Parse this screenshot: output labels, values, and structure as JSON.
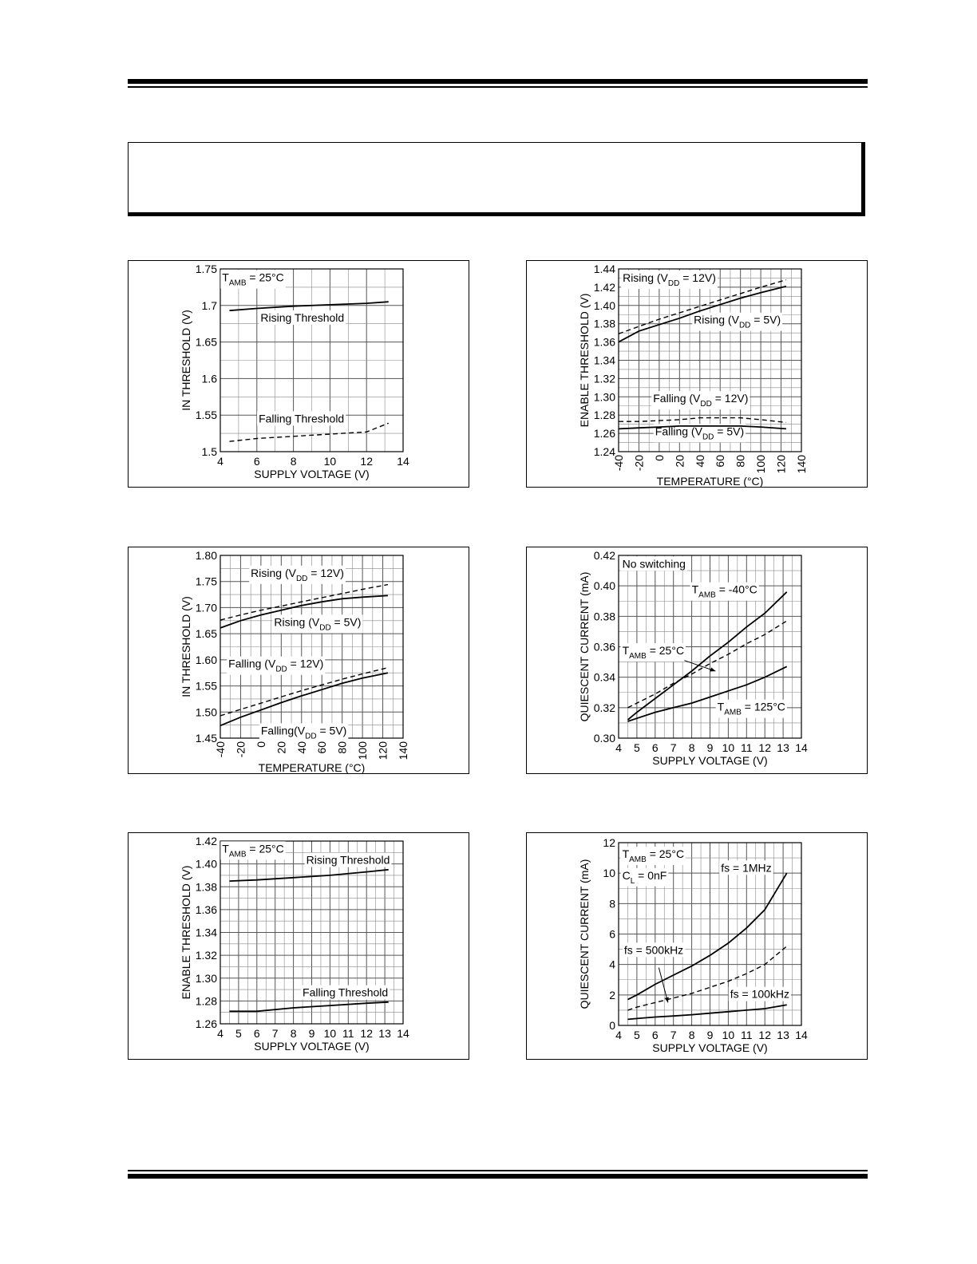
{
  "chart_data": [
    {
      "type": "line",
      "xlabel": "SUPPLY VOLTAGE (V)",
      "ylabel": "IN THRESHOLD (V)",
      "xlim": [
        4,
        14
      ],
      "ylim": [
        1.5,
        1.75
      ],
      "xticks": [
        4,
        6,
        8,
        10,
        12,
        14
      ],
      "yticks": [
        1.5,
        1.55,
        1.6,
        1.65,
        1.7,
        1.75
      ],
      "ytick_labels": [
        "1.5",
        "1.55",
        "1.6",
        "1.65",
        "1.7",
        "1.75"
      ],
      "grid": true,
      "series": [
        {
          "name": "Rising Threshold",
          "style": "solid",
          "x": [
            4.5,
            6,
            8,
            10,
            12,
            13.2
          ],
          "y": [
            1.693,
            1.696,
            1.699,
            1.701,
            1.703,
            1.705
          ]
        },
        {
          "name": "Falling Threshold",
          "style": "dashed",
          "x": [
            4.5,
            6,
            8,
            10,
            12,
            13.2
          ],
          "y": [
            1.514,
            1.518,
            1.521,
            1.524,
            1.527,
            1.539
          ]
        }
      ],
      "annotations": [
        {
          "text": "T",
          "sub": "AMB",
          "rest": " = 25°C",
          "ax": 4.1,
          "ay": 1.733
        },
        {
          "text": "Rising Threshold",
          "sub": "",
          "rest": "",
          "ax": 6.2,
          "ay": 1.678
        },
        {
          "text": "Falling Threshold",
          "sub": "",
          "rest": "",
          "ax": 6.1,
          "ay": 1.54
        }
      ]
    },
    {
      "type": "line",
      "xlabel": "TEMPERATURE (°C)",
      "ylabel": "ENABLE THRESHOLD (V)",
      "xlim": [
        -40,
        140
      ],
      "ylim": [
        1.24,
        1.44
      ],
      "xticks": [
        -40,
        -20,
        0,
        20,
        40,
        60,
        80,
        100,
        120,
        140
      ],
      "yticks": [
        1.24,
        1.26,
        1.28,
        1.3,
        1.32,
        1.34,
        1.36,
        1.38,
        1.4,
        1.42,
        1.44
      ],
      "ytick_labels": [
        "1.24",
        "1.26",
        "1.28",
        "1.30",
        "1.32",
        "1.34",
        "1.36",
        "1.38",
        "1.40",
        "1.42",
        "1.44"
      ],
      "rotate_xticks": true,
      "grid": true,
      "series": [
        {
          "name": "Rising (VDD = 12V)",
          "style": "dashed",
          "x": [
            -40,
            -20,
            0,
            20,
            40,
            60,
            80,
            100,
            125
          ],
          "y": [
            1.369,
            1.377,
            1.385,
            1.392,
            1.399,
            1.406,
            1.413,
            1.42,
            1.428
          ]
        },
        {
          "name": "Rising (VDD = 5V)",
          "style": "solid",
          "x": [
            -40,
            -20,
            0,
            20,
            40,
            60,
            80,
            100,
            125
          ],
          "y": [
            1.36,
            1.372,
            1.379,
            1.386,
            1.394,
            1.401,
            1.408,
            1.414,
            1.421
          ]
        },
        {
          "name": "Falling (VDD = 12V)",
          "style": "dashed",
          "x": [
            -40,
            -20,
            0,
            20,
            40,
            60,
            80,
            100,
            125
          ],
          "y": [
            1.273,
            1.273,
            1.274,
            1.275,
            1.277,
            1.277,
            1.277,
            1.275,
            1.272
          ]
        },
        {
          "name": "Falling (VDD = 5V)",
          "style": "solid",
          "x": [
            -40,
            -20,
            0,
            20,
            40,
            60,
            80,
            100,
            125
          ],
          "y": [
            1.265,
            1.266,
            1.267,
            1.268,
            1.268,
            1.268,
            1.268,
            1.267,
            1.265
          ]
        }
      ],
      "annotations": [
        {
          "text": "Rising (V",
          "sub": "DD",
          "rest": " = 12V)",
          "ax": -36,
          "ay": 1.426
        },
        {
          "text": "Rising (V",
          "sub": "DD",
          "rest": " = 5V)",
          "ax": 34,
          "ay": 1.38
        },
        {
          "text": "Falling (V",
          "sub": "DD",
          "rest": " = 12V)",
          "ax": -6,
          "ay": 1.294
        },
        {
          "text": "Falling (V",
          "sub": "DD",
          "rest": " = 5V)",
          "ax": -4,
          "ay": 1.258
        }
      ]
    },
    {
      "type": "line",
      "xlabel": "TEMPERATURE (°C)",
      "ylabel": "IN THRESHOLD (V)",
      "xlim": [
        -40,
        140
      ],
      "ylim": [
        1.45,
        1.8
      ],
      "xticks": [
        -40,
        -20,
        0,
        20,
        40,
        60,
        80,
        100,
        120,
        140
      ],
      "yticks": [
        1.45,
        1.5,
        1.55,
        1.6,
        1.65,
        1.7,
        1.75,
        1.8
      ],
      "ytick_labels": [
        "1.45",
        "1.50",
        "1.55",
        "1.60",
        "1.65",
        "1.70",
        "1.75",
        "1.80"
      ],
      "rotate_xticks": true,
      "grid": true,
      "series": [
        {
          "name": "Rising (VDD = 12V)",
          "style": "dashed",
          "x": [
            -40,
            -20,
            0,
            20,
            40,
            60,
            80,
            100,
            125
          ],
          "y": [
            1.676,
            1.686,
            1.695,
            1.703,
            1.711,
            1.719,
            1.727,
            1.735,
            1.744
          ]
        },
        {
          "name": "Rising (VDD = 5V)",
          "style": "solid",
          "x": [
            -40,
            -20,
            0,
            20,
            40,
            60,
            80,
            100,
            125
          ],
          "y": [
            1.661,
            1.675,
            1.686,
            1.695,
            1.704,
            1.711,
            1.717,
            1.72,
            1.723
          ]
        },
        {
          "name": "Falling (VDD = 12V)",
          "style": "dashed",
          "x": [
            -40,
            -20,
            0,
            20,
            40,
            60,
            80,
            100,
            125
          ],
          "y": [
            1.493,
            1.505,
            1.517,
            1.529,
            1.541,
            1.552,
            1.563,
            1.573,
            1.585
          ]
        },
        {
          "name": "Falling(VDD = 5V)",
          "style": "solid",
          "x": [
            -40,
            -20,
            0,
            20,
            40,
            60,
            80,
            100,
            125
          ],
          "y": [
            1.474,
            1.49,
            1.504,
            1.518,
            1.531,
            1.543,
            1.555,
            1.565,
            1.575
          ]
        }
      ],
      "annotations": [
        {
          "text": "Rising (V",
          "sub": "DD",
          "rest": " = 12V)",
          "ax": -10,
          "ay": 1.759
        },
        {
          "text": "Rising (V",
          "sub": "DD",
          "rest": " = 5V)",
          "ax": 13,
          "ay": 1.665
        },
        {
          "text": "Falling (V",
          "sub": "DD",
          "rest": " = 12V)",
          "ax": -32,
          "ay": 1.585
        },
        {
          "text": "Falling(V",
          "sub": "DD",
          "rest": " = 5V)",
          "ax": 0,
          "ay": 1.457
        }
      ]
    },
    {
      "type": "line",
      "xlabel": "SUPPLY VOLTAGE (V)",
      "ylabel": "QUIESCENT CURRENT (mA)",
      "xlim": [
        4,
        14
      ],
      "ylim": [
        0.3,
        0.42
      ],
      "xticks": [
        4,
        5,
        6,
        7,
        8,
        9,
        10,
        11,
        12,
        13,
        14
      ],
      "yticks": [
        0.3,
        0.32,
        0.34,
        0.36,
        0.38,
        0.4,
        0.42
      ],
      "ytick_labels": [
        "0.30",
        "0.32",
        "0.34",
        "0.36",
        "0.38",
        "0.40",
        "0.42"
      ],
      "grid": true,
      "series": [
        {
          "name": "TAMB = -40°C",
          "style": "solid",
          "x": [
            4.5,
            5,
            6,
            7,
            8,
            9,
            10,
            11,
            12,
            13.2
          ],
          "y": [
            0.312,
            0.317,
            0.326,
            0.335,
            0.344,
            0.354,
            0.363,
            0.373,
            0.382,
            0.396
          ]
        },
        {
          "name": "TAMB = 25°C",
          "style": "dashed",
          "x": [
            4.5,
            5,
            6,
            7,
            8,
            9,
            10,
            11,
            12,
            13.2
          ],
          "y": [
            0.32,
            0.323,
            0.329,
            0.336,
            0.342,
            0.349,
            0.355,
            0.362,
            0.368,
            0.377
          ]
        },
        {
          "name": "TAMB = 125°C",
          "style": "solid",
          "x": [
            4.5,
            5,
            6,
            7,
            8,
            9,
            10,
            11,
            12,
            13.2
          ],
          "y": [
            0.311,
            0.313,
            0.317,
            0.32,
            0.323,
            0.327,
            0.331,
            0.335,
            0.34,
            0.347
          ]
        }
      ],
      "annotations": [
        {
          "text": "No switching",
          "sub": "",
          "rest": "",
          "ax": 4.2,
          "ay": 0.412
        },
        {
          "text": "T",
          "sub": "AMB",
          "rest": " = -40°C",
          "ax": 8,
          "ay": 0.395
        },
        {
          "text": "T",
          "sub": "AMB",
          "rest": " = 25°C",
          "ax": 4.2,
          "ay": 0.355
        },
        {
          "text": "T",
          "sub": "AMB",
          "rest": " = 125°C",
          "ax": 9.4,
          "ay": 0.318
        }
      ],
      "arrows": [
        [
          7.6,
          0.351,
          9.3,
          0.344
        ]
      ]
    },
    {
      "type": "line",
      "xlabel": "SUPPLY VOLTAGE (V)",
      "ylabel": "ENABLE THRESHOLD (V)",
      "xlim": [
        4,
        14
      ],
      "ylim": [
        1.26,
        1.42
      ],
      "xticks": [
        4,
        5,
        6,
        7,
        8,
        9,
        10,
        11,
        12,
        13,
        14
      ],
      "yticks": [
        1.26,
        1.28,
        1.3,
        1.32,
        1.34,
        1.36,
        1.38,
        1.4,
        1.42
      ],
      "ytick_labels": [
        "1.26",
        "1.28",
        "1.30",
        "1.32",
        "1.34",
        "1.36",
        "1.38",
        "1.40",
        "1.42"
      ],
      "grid": true,
      "series": [
        {
          "name": "Rising Threshold",
          "style": "solid",
          "x": [
            4.5,
            6,
            8,
            10,
            12,
            13.2
          ],
          "y": [
            1.385,
            1.386,
            1.388,
            1.39,
            1.393,
            1.395
          ]
        },
        {
          "name": "Falling Threshold",
          "style": "solid",
          "x": [
            4.5,
            6,
            8,
            10,
            12,
            13.2
          ],
          "y": [
            1.271,
            1.271,
            1.274,
            1.276,
            1.278,
            1.279
          ]
        }
      ],
      "annotations": [
        {
          "text": "T",
          "sub": "AMB",
          "rest": " = 25°C",
          "ax": 4.1,
          "ay": 1.41
        },
        {
          "text": "Rising Threshold",
          "sub": "",
          "rest": "",
          "ax": 8.7,
          "ay": 1.4
        },
        {
          "text": "Falling Threshold",
          "sub": "",
          "rest": "",
          "ax": 8.5,
          "ay": 1.284
        }
      ]
    },
    {
      "type": "line",
      "xlabel": "SUPPLY VOLTAGE (V)",
      "ylabel": "QUIESCENT CURRENT (mA)",
      "xlim": [
        4,
        14
      ],
      "ylim": [
        0,
        12
      ],
      "xticks": [
        4,
        5,
        6,
        7,
        8,
        9,
        10,
        11,
        12,
        13,
        14
      ],
      "yticks": [
        0,
        2,
        4,
        6,
        8,
        10,
        12
      ],
      "ytick_labels": [
        "0",
        "2",
        "4",
        "6",
        "8",
        "10",
        "12"
      ],
      "grid": true,
      "series": [
        {
          "name": "fs = 1MHz",
          "style": "solid",
          "x": [
            4.5,
            5,
            6,
            7,
            8,
            9,
            10,
            11,
            12,
            13.2
          ],
          "y": [
            1.7,
            2.0,
            2.7,
            3.3,
            3.9,
            4.6,
            5.4,
            6.4,
            7.6,
            10.0
          ]
        },
        {
          "name": "fs = 500kHz",
          "style": "dashed",
          "x": [
            4.5,
            5,
            6,
            7,
            8,
            9,
            10,
            11,
            12,
            13.2
          ],
          "y": [
            1.0,
            1.2,
            1.5,
            1.8,
            2.1,
            2.5,
            2.9,
            3.4,
            4.0,
            5.2
          ]
        },
        {
          "name": "fs = 100kHz",
          "style": "solid",
          "x": [
            4.5,
            5,
            6,
            7,
            8,
            9,
            10,
            11,
            12,
            13.2
          ],
          "y": [
            0.4,
            0.45,
            0.55,
            0.62,
            0.7,
            0.8,
            0.9,
            1.0,
            1.1,
            1.35
          ]
        }
      ],
      "annotations": [
        {
          "text": "T",
          "sub": "AMB",
          "rest": " = 25°C",
          "ax": 4.2,
          "ay": 11.0
        },
        {
          "text": "C",
          "sub": "L",
          "rest": " = 0nF",
          "ax": 4.2,
          "ay": 9.6
        },
        {
          "text": "fs = 1MHz",
          "sub": "",
          "rest": "",
          "ax": 9.6,
          "ay": 10.1
        },
        {
          "text": "fs = 500kHz",
          "sub": "",
          "rest": "",
          "ax": 4.3,
          "ay": 4.7
        },
        {
          "text": "fs = 100kHz",
          "sub": "",
          "rest": "",
          "ax": 10.1,
          "ay": 1.8
        }
      ],
      "arrows": [
        [
          6.2,
          3.8,
          6.7,
          1.5
        ]
      ]
    }
  ]
}
